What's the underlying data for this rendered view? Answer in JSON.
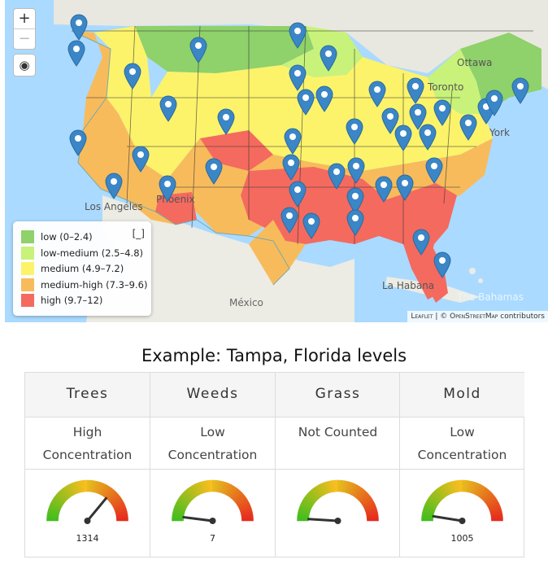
{
  "map": {
    "zoom_in": "+",
    "zoom_out": "−",
    "locate_icon": "globe-icon",
    "labels": {
      "ottawa": "Ottawa",
      "toronto": "Toronto",
      "new_york": "York",
      "los_angeles": "Los Angeles",
      "phoenix": "Phoenix",
      "mexico": "México",
      "la_habana": "La Habana",
      "bahamas": "The Bahamas"
    },
    "legend": {
      "collapse": "[_]",
      "items": [
        {
          "label": "low (0–2.4)",
          "color": "#8fd16a"
        },
        {
          "label": "low-medium (2.5–4.8)",
          "color": "#c8f27a"
        },
        {
          "label": "medium (4.9–7.2)",
          "color": "#fcf36b"
        },
        {
          "label": "medium-high (7.3–9.6)",
          "color": "#f8bb5c"
        },
        {
          "label": "high (9.7–12)",
          "color": "#f46a5f"
        }
      ]
    },
    "attribution": {
      "leaflet": "Leaflet",
      "sep": " | © ",
      "osm": "OpenStreetMap",
      "tail": " contributors"
    }
  },
  "caption": "Example: Tampa, Florida levels",
  "pollen_table": {
    "columns": [
      {
        "header": "Trees",
        "level_line1": "High",
        "level_line2": "Concentration",
        "count": "1314",
        "gauge_fraction": 0.72
      },
      {
        "header": "Weeds",
        "level_line1": "Low",
        "level_line2": "Concentration",
        "count": "7",
        "gauge_fraction": 0.04
      },
      {
        "header": "Grass",
        "level_line1": "Not Counted",
        "level_line2": "",
        "count": "",
        "gauge_fraction": 0.02
      },
      {
        "header": "Mold",
        "level_line1": "Low",
        "level_line2": "Concentration",
        "count": "1005",
        "gauge_fraction": 0.05
      }
    ]
  }
}
